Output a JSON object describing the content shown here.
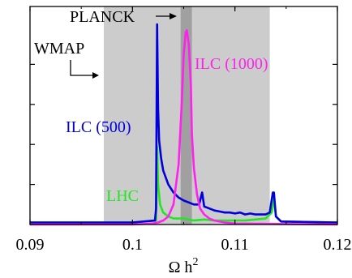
{
  "chart_data": {
    "type": "line",
    "title": "",
    "xlabel": "Ω h²",
    "xlabel_main": "Ω h",
    "xlabel_sup": "2",
    "ylabel": "",
    "xlim": [
      0.09,
      0.12
    ],
    "ylim": [
      0,
      1.0
    ],
    "x_ticks": [
      0.09,
      0.1,
      0.11,
      0.12
    ],
    "x_tick_labels": [
      "0.09",
      "0.1",
      "0.11",
      "0.12"
    ],
    "y_ticks": [
      0.2,
      0.4,
      0.6,
      0.8
    ],
    "grid": false,
    "bands": [
      {
        "name": "WMAP",
        "x": [
          0.0972,
          0.1134
        ],
        "color": "#cccccc"
      },
      {
        "name": "PLANCK",
        "x": [
          0.1047,
          0.1058
        ],
        "color": "#a0a0a0"
      }
    ],
    "annotations": {
      "wmap": "WMAP",
      "planck": "PLANCK"
    },
    "series": [
      {
        "name": "LHC",
        "color": "#22e622",
        "x": [
          0.09,
          0.1,
          0.1023,
          0.1024,
          0.1025,
          0.1027,
          0.103,
          0.1035,
          0.104,
          0.105,
          0.106,
          0.107,
          0.108,
          0.109,
          0.11,
          0.111,
          0.112,
          0.113,
          0.1136,
          0.1138,
          0.114,
          0.1145,
          0.12
        ],
        "y": [
          0.01,
          0.01,
          0.02,
          0.39,
          0.2,
          0.1,
          0.06,
          0.04,
          0.03,
          0.03,
          0.02,
          0.025,
          0.02,
          0.02,
          0.02,
          0.02,
          0.025,
          0.03,
          0.06,
          0.13,
          0.04,
          0.015,
          0.01
        ]
      },
      {
        "name": "ILC (500)",
        "color": "#0000dd",
        "x": [
          0.09,
          0.1,
          0.1022,
          0.1023,
          0.1024,
          0.1025,
          0.1026,
          0.1028,
          0.103,
          0.1035,
          0.104,
          0.1045,
          0.105,
          0.1055,
          0.106,
          0.1065,
          0.1068,
          0.107,
          0.1075,
          0.108,
          0.1085,
          0.109,
          0.1095,
          0.11,
          0.1105,
          0.111,
          0.1115,
          0.112,
          0.1125,
          0.113,
          0.1134,
          0.1137,
          0.1138,
          0.114,
          0.1145,
          0.12
        ],
        "y": [
          0.01,
          0.01,
          0.02,
          0.08,
          1.0,
          0.58,
          0.42,
          0.33,
          0.27,
          0.2,
          0.16,
          0.135,
          0.12,
          0.11,
          0.1,
          0.1,
          0.16,
          0.09,
          0.08,
          0.07,
          0.065,
          0.06,
          0.06,
          0.055,
          0.06,
          0.05,
          0.055,
          0.05,
          0.05,
          0.05,
          0.06,
          0.16,
          0.16,
          0.04,
          0.015,
          0.01
        ]
      },
      {
        "name": "ILC (1000)",
        "color": "#ff22ee",
        "x": [
          0.09,
          0.1,
          0.102,
          0.1025,
          0.103,
          0.1035,
          0.104,
          0.1045,
          0.1048,
          0.105,
          0.1052,
          0.1053,
          0.1055,
          0.1057,
          0.1058,
          0.106,
          0.1063,
          0.1066,
          0.107,
          0.1075,
          0.108,
          0.109,
          0.11,
          0.12
        ],
        "y": [
          0.0,
          0.0,
          0.005,
          0.01,
          0.02,
          0.04,
          0.1,
          0.3,
          0.6,
          0.85,
          0.96,
          0.97,
          0.9,
          0.7,
          0.45,
          0.28,
          0.15,
          0.08,
          0.05,
          0.03,
          0.02,
          0.01,
          0.005,
          0.0
        ]
      }
    ]
  }
}
